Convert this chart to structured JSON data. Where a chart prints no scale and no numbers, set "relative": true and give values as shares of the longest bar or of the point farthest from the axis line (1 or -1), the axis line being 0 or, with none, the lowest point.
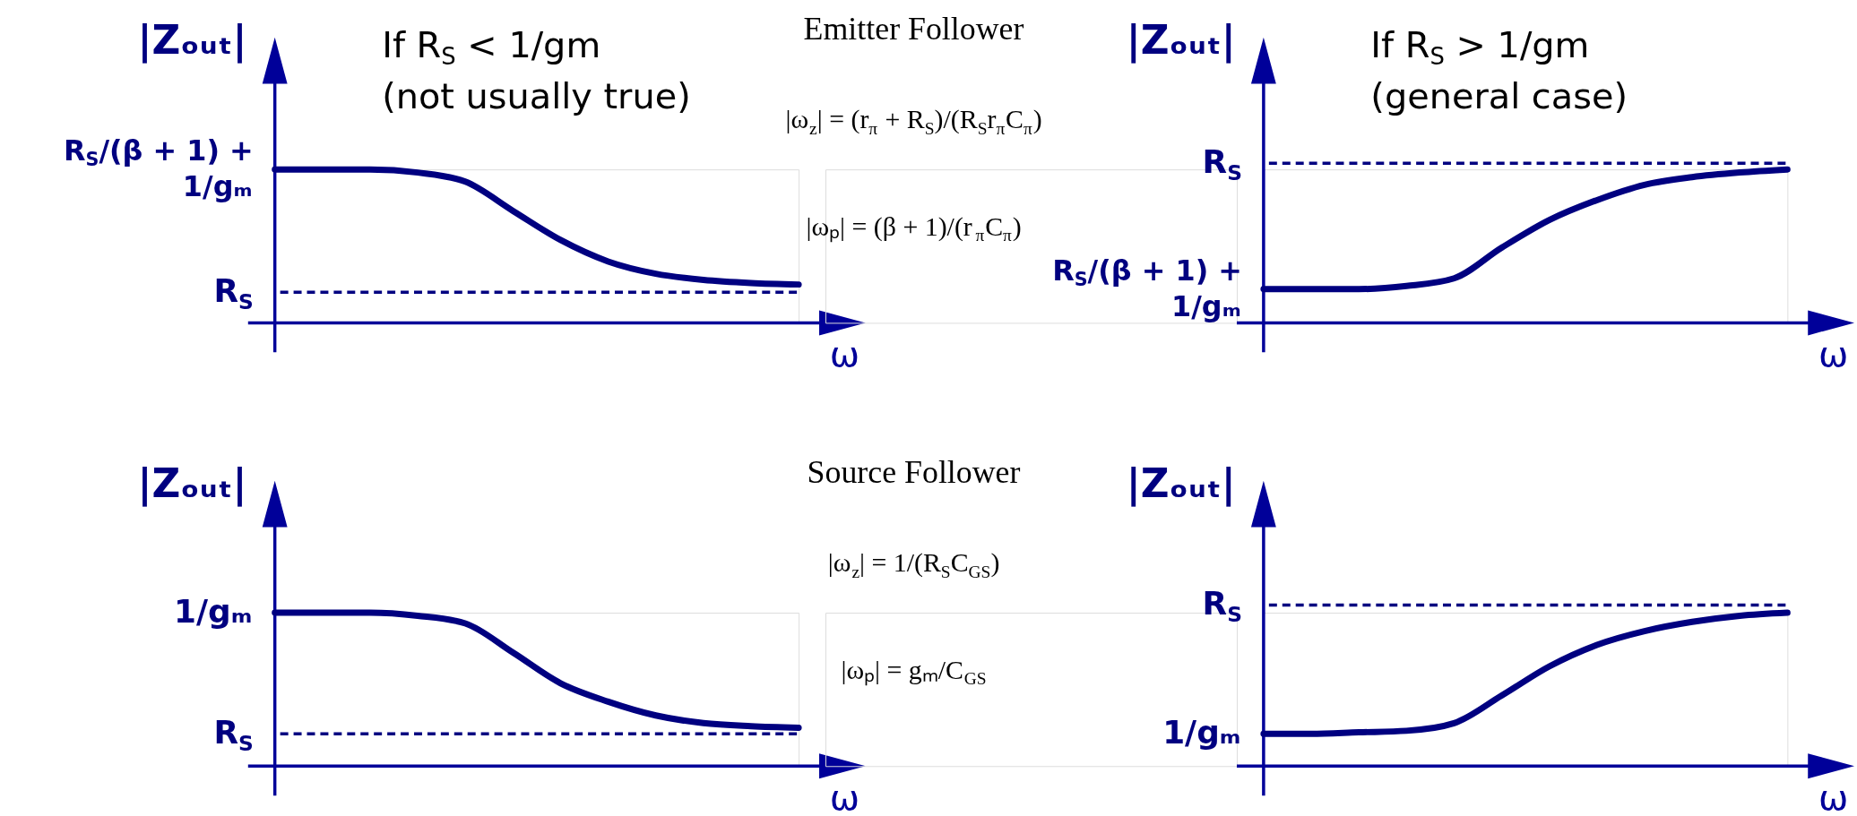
{
  "chart_data": [
    {
      "type": "line",
      "relative": true,
      "title": "If R$_{S}$ < 1/gm",
      "subtitle": "(not usually true)",
      "xlabel": "ω",
      "ylabel": "|Zₒᵤₜ|",
      "categories": [
        null,
        null,
        null,
        null,
        null,
        null,
        null,
        null,
        null,
        null,
        null,
        null
      ],
      "series": [
        {
          "color": "#000080",
          "values": [
            1.0,
            1.0,
            1.0,
            0.98,
            0.92,
            0.73,
            0.54,
            0.4,
            0.32,
            0.28,
            0.26,
            0.25
          ]
        }
      ],
      "ref_lines": [
        {
          "axis": "y",
          "value": 0.2,
          "label": "R$_{S}$",
          "color": "#000080",
          "line_style": "dashed"
        }
      ],
      "annotations": [
        "R$_{S}$/(β + 1) + 1/gₘ"
      ]
    },
    {
      "type": "other",
      "title": "Emitter Follower",
      "annotations": [
        "|ω$_{z}$| = (r$_{π}$ + R$_{S}$)/(R$_{S}$r$_{π}$C$_{π}$)",
        "|ωₚ| = (β + 1)/(r$_{π}$C$_{π}$)"
      ]
    },
    {
      "type": "line",
      "relative": true,
      "title": "If R$_{S}$ > 1/gm",
      "subtitle": "(general case)",
      "xlabel": "ω",
      "ylabel": "|Zₒᵤₜ|",
      "categories": [
        null,
        null,
        null,
        null,
        null,
        null,
        null,
        null,
        null,
        null,
        null,
        null
      ],
      "series": [
        {
          "color": "#000080",
          "values": [
            0.22,
            0.22,
            0.22,
            0.24,
            0.29,
            0.49,
            0.67,
            0.8,
            0.9,
            0.95,
            0.98,
            1.0
          ]
        }
      ],
      "ref_lines": [
        {
          "axis": "y",
          "value": 1.04,
          "label": "R$_{S}$",
          "color": "#000080",
          "line_style": "dashed"
        }
      ],
      "annotations": [
        "R$_{S}$/(β + 1) + 1/gₘ"
      ]
    },
    {
      "type": "line",
      "relative": true,
      "xlabel": "ω",
      "ylabel": "|Zₒᵤₜ|",
      "categories": [
        null,
        null,
        null,
        null,
        null,
        null,
        null,
        null,
        null,
        null,
        null,
        null
      ],
      "series": [
        {
          "color": "#000080",
          "values": [
            1.0,
            1.0,
            1.0,
            0.98,
            0.93,
            0.74,
            0.54,
            0.42,
            0.33,
            0.28,
            0.26,
            0.25
          ]
        }
      ],
      "ref_lines": [
        {
          "axis": "y",
          "value": 0.21,
          "label": "R$_{S}$",
          "color": "#000080",
          "line_style": "dashed"
        }
      ],
      "annotations": [
        "1/gₘ"
      ]
    },
    {
      "type": "other",
      "title": "Source Follower",
      "annotations": [
        "|ω$_{z}$| = 1/(R$_{S}$C$_{GS}$)",
        "|ωₚ| = gₘ/C$_{GS}$"
      ]
    },
    {
      "type": "line",
      "relative": true,
      "xlabel": "ω",
      "ylabel": "|Zₒᵤₜ|",
      "categories": [
        null,
        null,
        null,
        null,
        null,
        null,
        null,
        null,
        null,
        null,
        null,
        null
      ],
      "series": [
        {
          "color": "#000080",
          "values": [
            0.21,
            0.21,
            0.22,
            0.23,
            0.28,
            0.46,
            0.65,
            0.79,
            0.88,
            0.94,
            0.98,
            1.0
          ]
        }
      ],
      "ref_lines": [
        {
          "axis": "y",
          "value": 1.05,
          "label": "R$_{S}$",
          "color": "#000080",
          "line_style": "dashed"
        }
      ],
      "annotations": [
        "1/gₘ"
      ]
    }
  ]
}
